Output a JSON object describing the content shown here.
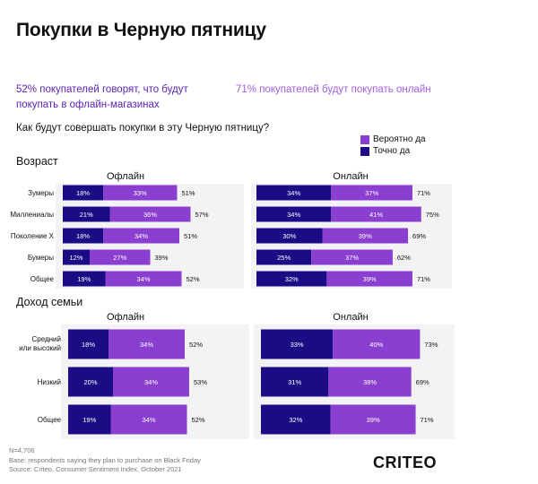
{
  "title": "Покупки в Черную пятницу",
  "stat_left": "52% покупателей говорят, что будут покупать в офлайн-магазинах",
  "stat_right": "71% покупателей будут покупать онлайн",
  "question": "Как будут совершать покупки в эту Черную пятницу?",
  "legend": [
    {
      "label": "Вероятно да",
      "color": "#8a3fd1"
    },
    {
      "label": "Точно да",
      "color": "#1b0b85"
    }
  ],
  "colors": {
    "definitely": "#1b0b85",
    "probably": "#8a3fd1",
    "text": "#111111"
  },
  "footer": {
    "n": "N=4,706",
    "base": "Base: respondents saying they plan to purchase on Black Friday",
    "source": "Source: Criteo, Consumer Sentiment Index, October 2021"
  },
  "logo": "CRITEO",
  "chart_data": [
    {
      "type": "bar",
      "stacked": true,
      "orientation": "horizontal",
      "title": "Возраст",
      "panels": [
        "Офлайн",
        "Онлайн"
      ],
      "categories": [
        "Зумеры",
        "Миллениалы",
        "Поколение X",
        "Бумеры",
        "Общее"
      ],
      "series": [
        {
          "name": "Точно да",
          "offline": [
            18,
            21,
            18,
            12,
            19
          ],
          "online": [
            34,
            34,
            30,
            25,
            32
          ]
        },
        {
          "name": "Вероятно да",
          "offline": [
            33,
            36,
            34,
            27,
            34
          ],
          "online": [
            37,
            41,
            39,
            37,
            39
          ]
        }
      ],
      "totals": {
        "offline": [
          51,
          57,
          51,
          39,
          52
        ],
        "online": [
          71,
          75,
          69,
          62,
          71
        ]
      }
    },
    {
      "type": "bar",
      "stacked": true,
      "orientation": "horizontal",
      "title": "Доход семьи",
      "panels": [
        "Офлайн",
        "Онлайн"
      ],
      "categories": [
        "Средний или высокий",
        "Низкий",
        "Общее"
      ],
      "series": [
        {
          "name": "Точно да",
          "offline": [
            18,
            20,
            19
          ],
          "online": [
            33,
            31,
            32
          ]
        },
        {
          "name": "Вероятно да",
          "offline": [
            34,
            34,
            34
          ],
          "online": [
            40,
            38,
            39
          ]
        }
      ],
      "totals": {
        "offline": [
          52,
          53,
          52
        ],
        "online": [
          73,
          69,
          71
        ]
      }
    }
  ]
}
